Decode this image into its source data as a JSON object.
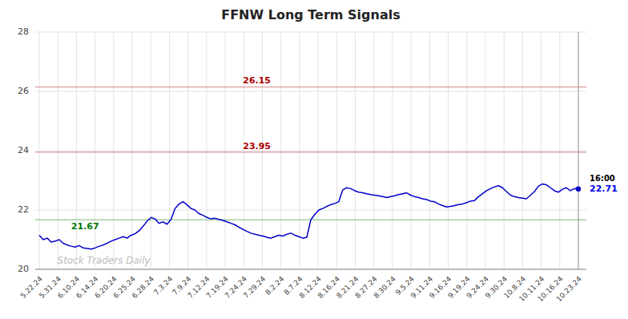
{
  "chart_data": {
    "type": "line",
    "title": "FFNW Long Term Signals",
    "color": "#0000cc",
    "values": [
      21.15,
      21.0,
      21.05,
      20.92,
      20.95,
      21.0,
      20.88,
      20.82,
      20.78,
      20.75,
      20.8,
      20.72,
      20.7,
      20.68,
      20.72,
      20.78,
      20.82,
      20.88,
      20.95,
      21.0,
      21.05,
      21.1,
      21.05,
      21.15,
      21.2,
      21.3,
      21.45,
      21.62,
      21.75,
      21.7,
      21.55,
      21.6,
      21.52,
      21.68,
      22.05,
      22.2,
      22.28,
      22.18,
      22.05,
      22.0,
      21.88,
      21.82,
      21.75,
      21.7,
      21.72,
      21.68,
      21.65,
      21.6,
      21.55,
      21.5,
      21.42,
      21.35,
      21.28,
      21.22,
      21.18,
      21.15,
      21.12,
      21.08,
      21.05,
      21.1,
      21.15,
      21.12,
      21.18,
      21.22,
      21.15,
      21.1,
      21.05,
      21.08,
      21.67,
      21.85,
      22.0,
      22.05,
      22.12,
      22.18,
      22.22,
      22.28,
      22.68,
      22.75,
      22.72,
      22.65,
      22.6,
      22.58,
      22.55,
      22.52,
      22.5,
      22.48,
      22.45,
      22.42,
      22.45,
      22.48,
      22.52,
      22.55,
      22.58,
      22.5,
      22.45,
      22.42,
      22.38,
      22.35,
      22.3,
      22.28,
      22.2,
      22.15,
      22.1,
      22.12,
      22.15,
      22.18,
      22.2,
      22.25,
      22.3,
      22.32,
      22.45,
      22.55,
      22.65,
      22.72,
      22.78,
      22.82,
      22.75,
      22.62,
      22.5,
      22.45,
      22.42,
      22.4,
      22.38,
      22.5,
      22.62,
      22.8,
      22.88,
      22.85,
      22.75,
      22.65,
      22.6,
      22.7,
      22.75,
      22.65,
      22.72,
      22.71
    ],
    "xlim": [
      -1,
      137
    ],
    "xticks": [
      {
        "value": 0,
        "label": "5.22.24"
      },
      {
        "value": 4.655172413793103,
        "label": "5.31.24"
      },
      {
        "value": 9.310344827586206,
        "label": "6.10.24"
      },
      {
        "value": 13.96551724137931,
        "label": "6.14.24"
      },
      {
        "value": 18.620689655172413,
        "label": "6.20.24"
      },
      {
        "value": 23.275862068965516,
        "label": "6.25.24"
      },
      {
        "value": 27.93103448275862,
        "label": "6.28.24"
      },
      {
        "value": 32.58620689655172,
        "label": "7.3.24"
      },
      {
        "value": 37.241379310344826,
        "label": "7.9.24"
      },
      {
        "value": 41.89655172413793,
        "label": "7.12.24"
      },
      {
        "value": 46.55172413793103,
        "label": "7.19.24"
      },
      {
        "value": 51.206896551724135,
        "label": "7.24.24"
      },
      {
        "value": 55.86206896551724,
        "label": "7.29.24"
      },
      {
        "value": 60.51724137931034,
        "label": "8.2.24"
      },
      {
        "value": 65.17241379310344,
        "label": "8.7.24"
      },
      {
        "value": 69.82758620689656,
        "label": "8.12.24"
      },
      {
        "value": 74.48275862068965,
        "label": "8.16.24"
      },
      {
        "value": 79.13793103448276,
        "label": "8.21.24"
      },
      {
        "value": 83.79310344827586,
        "label": "8.27.24"
      },
      {
        "value": 88.44827586206897,
        "label": "8.30.24"
      },
      {
        "value": 93.10344827586206,
        "label": "9.5.24"
      },
      {
        "value": 97.75862068965517,
        "label": "9.11.24"
      },
      {
        "value": 102.41379310344827,
        "label": "9.16.24"
      },
      {
        "value": 107.06896551724138,
        "label": "9.19.24"
      },
      {
        "value": 111.72413793103448,
        "label": "9.24.24"
      },
      {
        "value": 116.37931034482759,
        "label": "9.30.24"
      },
      {
        "value": 121.03448275862068,
        "label": "10.8.24"
      },
      {
        "value": 125.6896551724138,
        "label": "10.11.24"
      },
      {
        "value": 130.3448275862069,
        "label": "10.16.24"
      },
      {
        "value": 135,
        "label": "10.23.24"
      }
    ],
    "ylim": [
      20,
      28
    ],
    "yticks": [
      20,
      22,
      24,
      26,
      28
    ],
    "grid": true,
    "levels": [
      {
        "value": 26.15,
        "label": "26.15",
        "color": "#aa0000"
      },
      {
        "value": 23.95,
        "label": "23.95",
        "color": "#aa0000"
      },
      {
        "value": 21.67,
        "label": "21.67",
        "color": "#007700"
      }
    ],
    "annotations": [
      {
        "text": "16:00"
      },
      {
        "text": "22.71",
        "value": 22.71,
        "color": "#0000ee"
      }
    ],
    "watermark": "Stock Traders Daily"
  }
}
